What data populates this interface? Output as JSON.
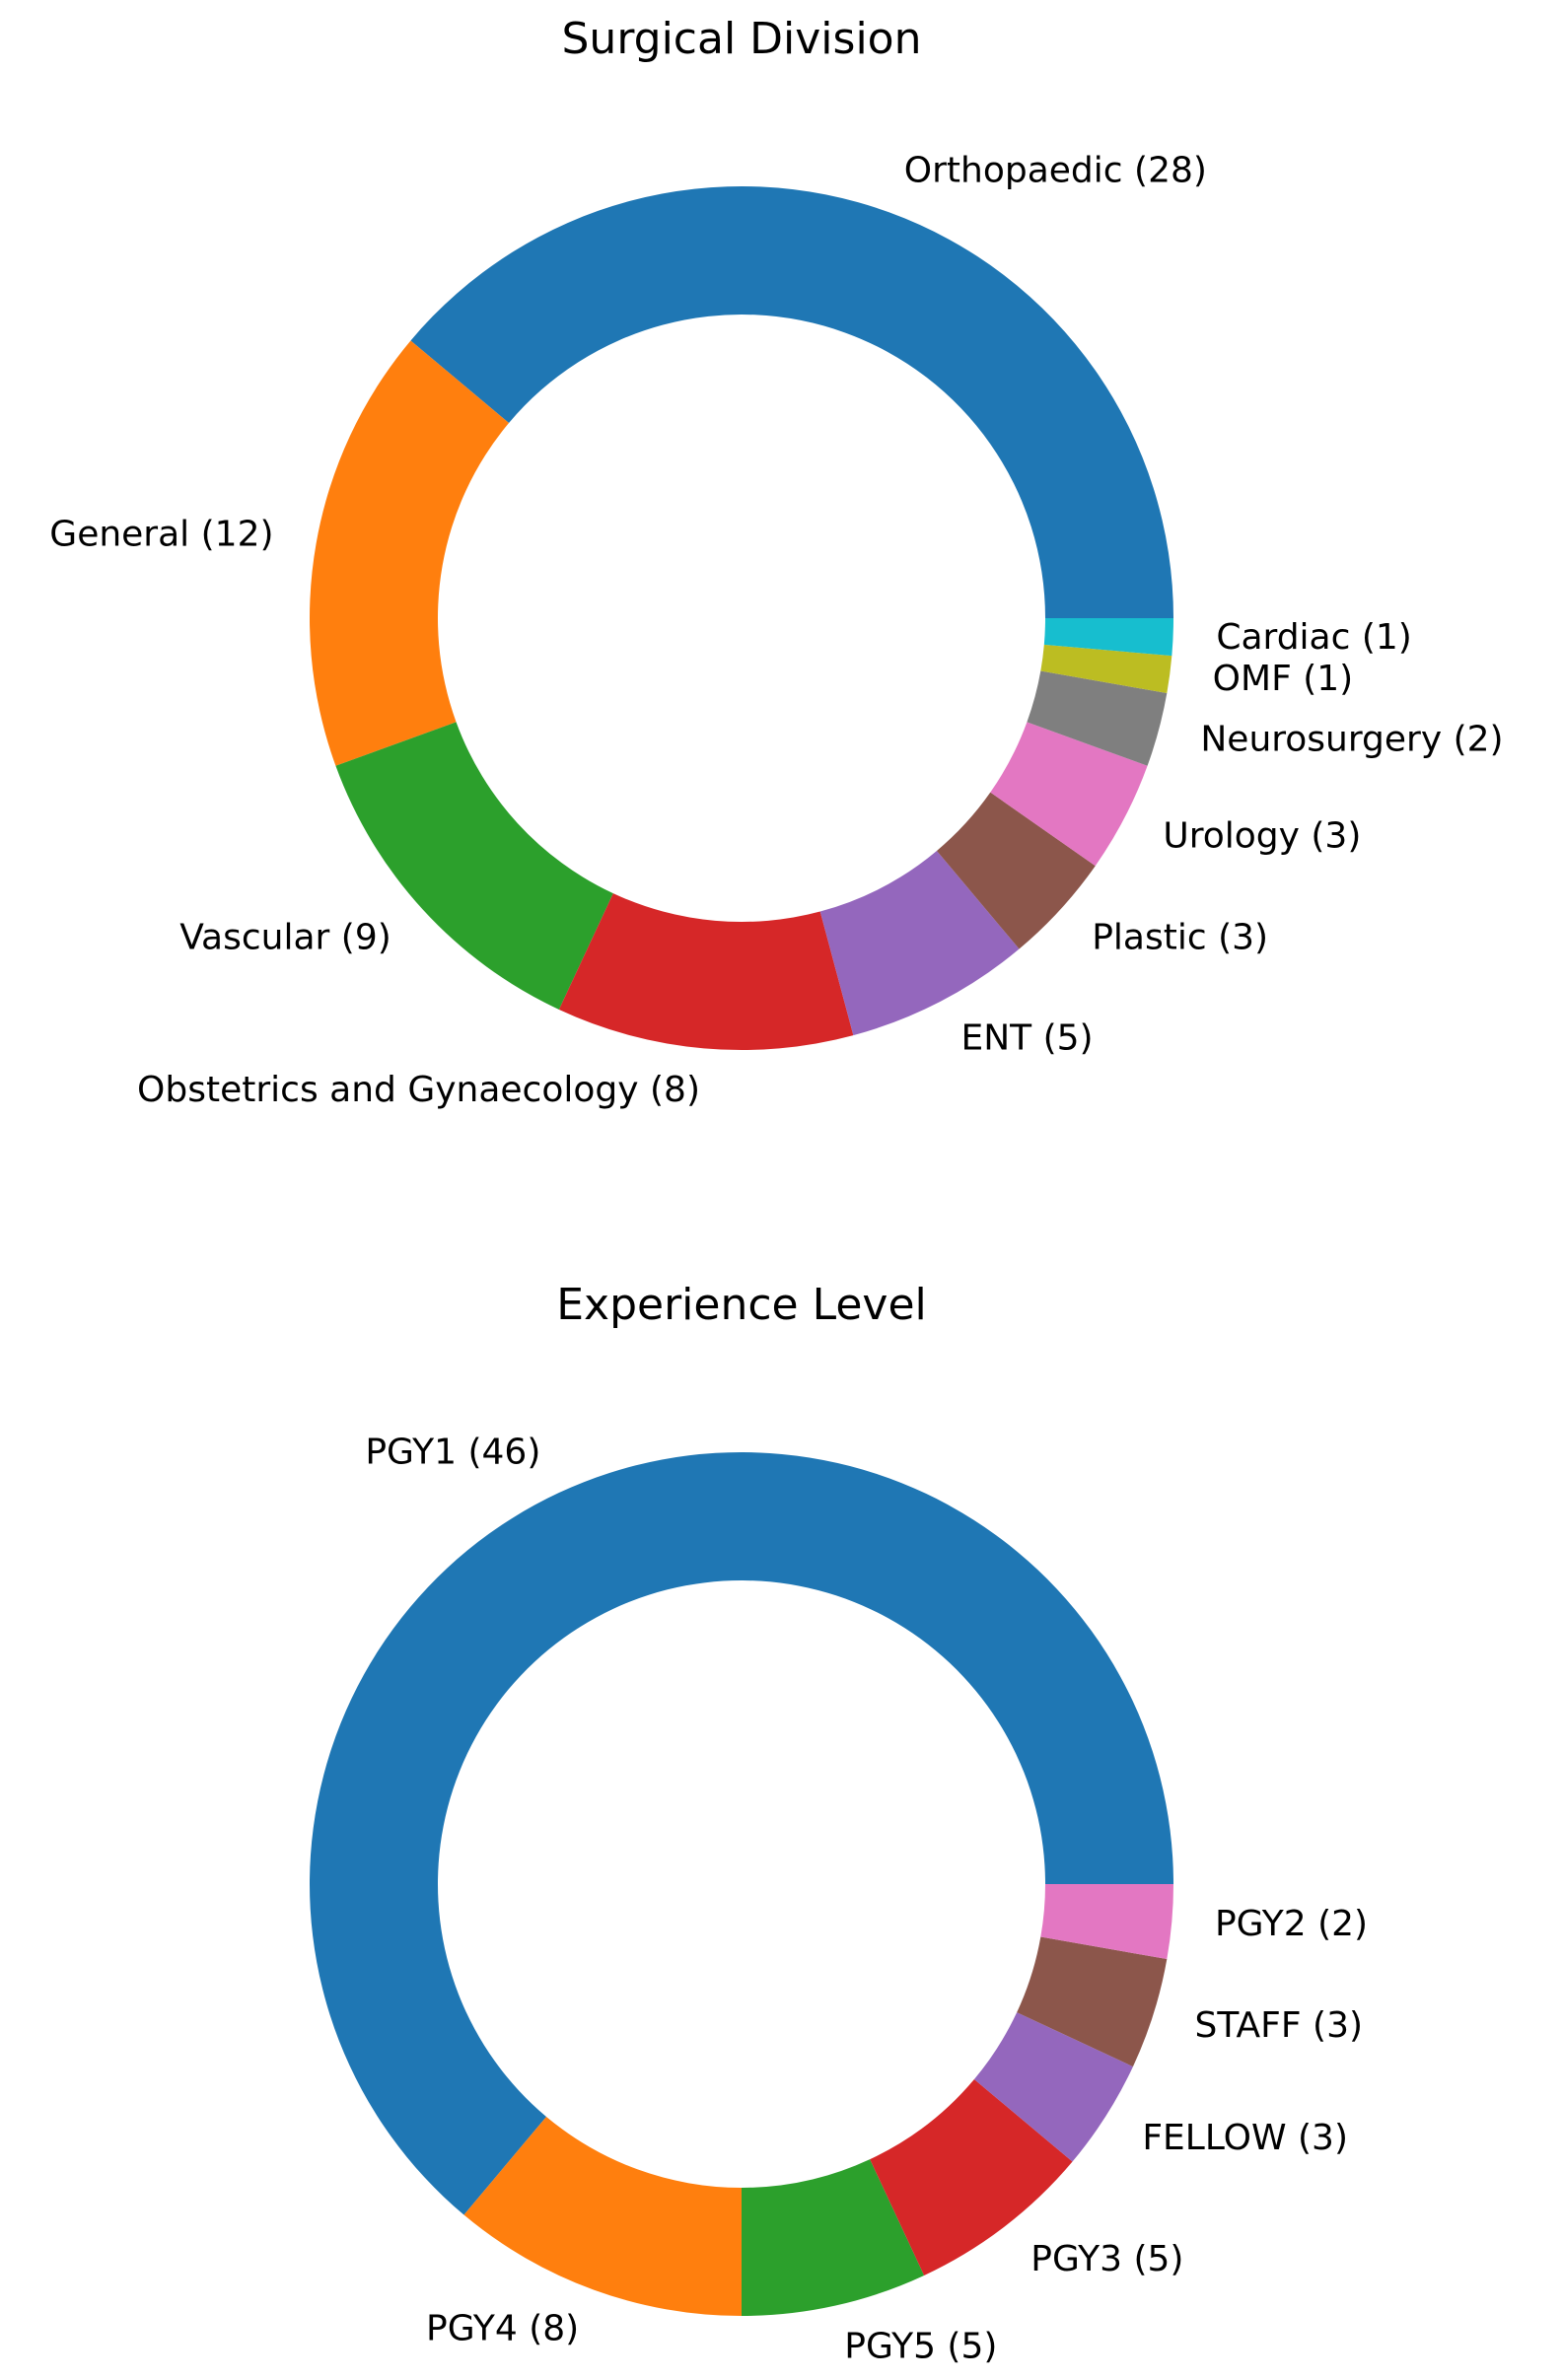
{
  "chart_data": [
    {
      "type": "pie",
      "donut": true,
      "title": "Surgical Division",
      "categories": [
        "Orthopaedic",
        "General",
        "Vascular",
        "Obstetrics and Gynaecology",
        "ENT",
        "Plastic",
        "Urology",
        "Neurosurgery",
        "OMF",
        "Cardiac"
      ],
      "values": [
        28,
        12,
        9,
        8,
        5,
        3,
        3,
        2,
        1,
        1
      ],
      "labels": [
        "Orthopaedic (28)",
        "General (12)",
        "Vascular (9)",
        "Obstetrics and Gynaecology (8)",
        "ENT (5)",
        "Plastic (3)",
        "Urology (3)",
        "Neurosurgery (2)",
        "OMF (1)",
        "Cardiac (1)"
      ],
      "colors": [
        "#1f77b4",
        "#ff7f0e",
        "#2ca02c",
        "#d62728",
        "#9467bd",
        "#8c564b",
        "#e377c2",
        "#7f7f7f",
        "#bcbd22",
        "#17becf"
      ],
      "start_angle_deg": 0,
      "direction": "counterclockwise"
    },
    {
      "type": "pie",
      "donut": true,
      "title": "Experience Level",
      "categories": [
        "PGY1",
        "PGY4",
        "PGY5",
        "PGY3",
        "FELLOW",
        "STAFF",
        "PGY2"
      ],
      "values": [
        46,
        8,
        5,
        5,
        3,
        3,
        2
      ],
      "labels": [
        "PGY1 (46)",
        "PGY4 (8)",
        "PGY5 (5)",
        "PGY3 (5)",
        "FELLOW (3)",
        "STAFF (3)",
        "PGY2 (2)"
      ],
      "colors": [
        "#1f77b4",
        "#ff7f0e",
        "#2ca02c",
        "#d62728",
        "#9467bd",
        "#8c564b",
        "#e377c2"
      ],
      "start_angle_deg": 0,
      "direction": "counterclockwise"
    }
  ]
}
